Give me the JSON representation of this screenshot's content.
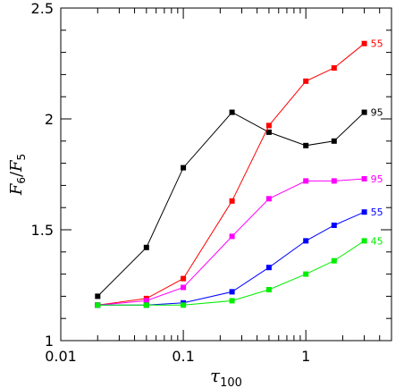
{
  "chart_data": {
    "type": "line",
    "xscale": "log",
    "xlim": [
      0.01,
      5
    ],
    "ylim": [
      1,
      2.5
    ],
    "xlabel": "τ",
    "xlabel_sub": "100",
    "ylabel_num": "F",
    "ylabel_num_sub": "6",
    "ylabel_den": "F",
    "ylabel_den_sub": "5",
    "x_ticks": [
      {
        "value": 0.01,
        "label": "0.01"
      },
      {
        "value": 0.1,
        "label": "0.1"
      },
      {
        "value": 1,
        "label": "1"
      }
    ],
    "y_ticks": [
      {
        "value": 1,
        "label": "1"
      },
      {
        "value": 1.5,
        "label": "1.5"
      },
      {
        "value": 2,
        "label": "2"
      },
      {
        "value": 2.5,
        "label": "2.5"
      }
    ],
    "x": [
      0.02,
      0.05,
      0.1,
      0.25,
      0.5,
      1,
      1.7,
      3
    ],
    "series": [
      {
        "color": "#000000",
        "end_label": "95",
        "values": [
          1.2,
          1.42,
          1.78,
          2.03,
          1.94,
          1.88,
          1.9,
          2.03
        ]
      },
      {
        "color": "#ff0000",
        "end_label": "55",
        "values": [
          1.16,
          1.19,
          1.28,
          1.63,
          1.97,
          2.17,
          2.23,
          2.34
        ]
      },
      {
        "color": "#ff00ff",
        "end_label": "95",
        "values": [
          1.16,
          1.18,
          1.24,
          1.47,
          1.64,
          1.72,
          1.72,
          1.73
        ]
      },
      {
        "color": "#0000ff",
        "end_label": "55",
        "values": [
          1.16,
          1.16,
          1.17,
          1.22,
          1.33,
          1.45,
          1.52,
          1.58
        ]
      },
      {
        "color": "#00ee00",
        "end_label": "45",
        "values": [
          1.16,
          1.16,
          1.16,
          1.18,
          1.23,
          1.3,
          1.36,
          1.45
        ]
      }
    ]
  }
}
